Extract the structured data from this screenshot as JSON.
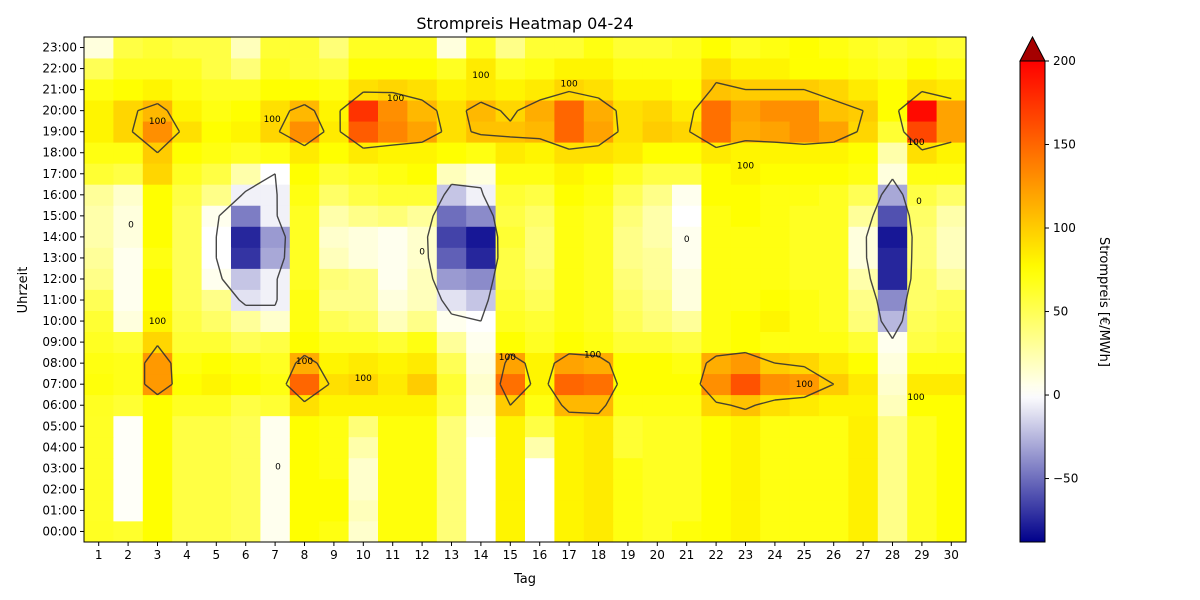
{
  "chart_data": {
    "type": "heatmap",
    "title": "Strompreis Heatmap 04-24",
    "xlabel": "Tag",
    "ylabel": "Uhrzeit",
    "colorbar_label": "Strompreis [€/MWh]",
    "x": [
      "1",
      "2",
      "3",
      "4",
      "5",
      "6",
      "7",
      "8",
      "9",
      "10",
      "11",
      "12",
      "13",
      "14",
      "15",
      "16",
      "17",
      "18",
      "19",
      "20",
      "21",
      "22",
      "23",
      "24",
      "25",
      "26",
      "27",
      "28",
      "29",
      "30"
    ],
    "y": [
      "00:00",
      "01:00",
      "02:00",
      "03:00",
      "04:00",
      "05:00",
      "06:00",
      "07:00",
      "08:00",
      "09:00",
      "10:00",
      "11:00",
      "12:00",
      "13:00",
      "14:00",
      "15:00",
      "16:00",
      "17:00",
      "18:00",
      "19:00",
      "20:00",
      "21:00",
      "22:00",
      "23:00"
    ],
    "values": [
      [
        65,
        62,
        75,
        55,
        55,
        50,
        5,
        75,
        70,
        15,
        72,
        72,
        40,
        0,
        80,
        0,
        80,
        85,
        70,
        65,
        72,
        75,
        80,
        70,
        70,
        70,
        82,
        35,
        65,
        75
      ],
      [
        64,
        2,
        75,
        55,
        55,
        50,
        5,
        75,
        75,
        20,
        72,
        72,
        40,
        0,
        80,
        0,
        80,
        85,
        70,
        65,
        65,
        75,
        80,
        70,
        70,
        70,
        82,
        35,
        65,
        75
      ],
      [
        64,
        2,
        75,
        55,
        55,
        50,
        5,
        75,
        75,
        15,
        72,
        72,
        40,
        0,
        80,
        0,
        80,
        85,
        70,
        65,
        65,
        75,
        80,
        70,
        70,
        70,
        82,
        35,
        65,
        75
      ],
      [
        64,
        2,
        75,
        55,
        55,
        50,
        5,
        75,
        70,
        15,
        72,
        72,
        40,
        0,
        80,
        0,
        80,
        85,
        70,
        65,
        65,
        75,
        80,
        70,
        70,
        70,
        82,
        35,
        65,
        75
      ],
      [
        64,
        2,
        75,
        55,
        55,
        50,
        5,
        75,
        70,
        25,
        72,
        72,
        40,
        0,
        80,
        25,
        80,
        85,
        60,
        65,
        65,
        75,
        80,
        70,
        70,
        70,
        82,
        35,
        65,
        75
      ],
      [
        64,
        2,
        75,
        55,
        55,
        50,
        5,
        75,
        70,
        40,
        72,
        72,
        40,
        5,
        80,
        55,
        80,
        85,
        60,
        65,
        65,
        75,
        80,
        70,
        70,
        70,
        82,
        35,
        65,
        75
      ],
      [
        65,
        60,
        75,
        65,
        65,
        55,
        60,
        90,
        80,
        80,
        80,
        80,
        55,
        10,
        100,
        70,
        110,
        110,
        70,
        70,
        70,
        95,
        105,
        90,
        85,
        80,
        80,
        20,
        75,
        75
      ],
      [
        72,
        68,
        125,
        75,
        80,
        75,
        70,
        150,
        90,
        95,
        85,
        100,
        60,
        15,
        145,
        80,
        150,
        145,
        75,
        75,
        75,
        130,
        160,
        130,
        125,
        100,
        85,
        15,
        85,
        85
      ],
      [
        70,
        68,
        125,
        70,
        75,
        70,
        65,
        115,
        80,
        85,
        80,
        85,
        50,
        10,
        120,
        80,
        120,
        115,
        75,
        75,
        70,
        115,
        125,
        100,
        95,
        85,
        75,
        10,
        70,
        70
      ],
      [
        65,
        60,
        95,
        60,
        60,
        50,
        55,
        75,
        65,
        65,
        60,
        70,
        30,
        5,
        75,
        65,
        75,
        70,
        60,
        60,
        55,
        70,
        75,
        70,
        70,
        70,
        60,
        5,
        55,
        60
      ],
      [
        60,
        10,
        80,
        55,
        45,
        30,
        15,
        70,
        50,
        45,
        20,
        35,
        5,
        0,
        65,
        60,
        70,
        65,
        50,
        40,
        30,
        70,
        75,
        80,
        70,
        65,
        40,
        -25,
        50,
        55
      ],
      [
        50,
        5,
        75,
        50,
        35,
        -10,
        -5,
        70,
        35,
        35,
        10,
        20,
        -10,
        -20,
        60,
        50,
        70,
        65,
        45,
        35,
        10,
        70,
        70,
        75,
        70,
        65,
        35,
        -40,
        45,
        50
      ],
      [
        35,
        5,
        75,
        50,
        5,
        -20,
        -5,
        65,
        40,
        35,
        5,
        20,
        -35,
        -40,
        55,
        45,
        70,
        65,
        40,
        30,
        10,
        70,
        70,
        70,
        65,
        65,
        25,
        -75,
        45,
        30
      ],
      [
        30,
        5,
        70,
        50,
        0,
        -70,
        -30,
        65,
        20,
        10,
        5,
        15,
        -55,
        -75,
        55,
        40,
        70,
        65,
        35,
        30,
        5,
        70,
        70,
        70,
        65,
        65,
        10,
        -75,
        40,
        20
      ],
      [
        25,
        10,
        75,
        50,
        0,
        -75,
        -35,
        65,
        15,
        10,
        5,
        15,
        -65,
        -80,
        60,
        40,
        70,
        65,
        35,
        25,
        5,
        70,
        70,
        70,
        65,
        65,
        10,
        -80,
        40,
        20
      ],
      [
        25,
        10,
        75,
        50,
        5,
        -45,
        -5,
        65,
        25,
        35,
        40,
        30,
        -50,
        -40,
        55,
        45,
        70,
        65,
        40,
        25,
        0,
        70,
        75,
        70,
        65,
        65,
        30,
        -60,
        45,
        25
      ],
      [
        30,
        15,
        75,
        55,
        35,
        -5,
        -5,
        70,
        45,
        55,
        60,
        60,
        -20,
        -5,
        60,
        55,
        75,
        70,
        50,
        35,
        5,
        75,
        75,
        70,
        70,
        65,
        50,
        -30,
        55,
        45
      ],
      [
        60,
        55,
        95,
        65,
        55,
        25,
        0,
        75,
        60,
        65,
        70,
        75,
        20,
        10,
        70,
        70,
        80,
        75,
        65,
        55,
        55,
        75,
        80,
        75,
        75,
        75,
        70,
        10,
        70,
        70
      ],
      [
        70,
        70,
        100,
        75,
        70,
        65,
        70,
        85,
        75,
        85,
        80,
        80,
        75,
        70,
        85,
        80,
        90,
        90,
        85,
        75,
        75,
        85,
        80,
        80,
        80,
        80,
        75,
        25,
        90,
        80
      ],
      [
        80,
        95,
        130,
        90,
        75,
        80,
        95,
        130,
        85,
        155,
        135,
        120,
        90,
        105,
        105,
        110,
        150,
        120,
        90,
        100,
        95,
        145,
        115,
        120,
        130,
        120,
        95,
        60,
        165,
        120
      ],
      [
        80,
        95,
        110,
        80,
        70,
        75,
        90,
        110,
        80,
        175,
        130,
        110,
        90,
        110,
        95,
        115,
        150,
        115,
        90,
        95,
        85,
        145,
        120,
        130,
        130,
        105,
        100,
        75,
        195,
        120
      ],
      [
        70,
        75,
        80,
        70,
        65,
        65,
        75,
        75,
        70,
        90,
        95,
        90,
        80,
        85,
        80,
        85,
        95,
        90,
        80,
        80,
        75,
        105,
        100,
        100,
        100,
        95,
        85,
        75,
        90,
        85
      ],
      [
        50,
        65,
        65,
        65,
        55,
        40,
        65,
        60,
        55,
        75,
        75,
        75,
        65,
        85,
        65,
        70,
        80,
        80,
        70,
        70,
        70,
        90,
        80,
        80,
        75,
        75,
        70,
        65,
        75,
        70
      ],
      [
        10,
        55,
        60,
        55,
        55,
        20,
        60,
        60,
        40,
        65,
        65,
        65,
        10,
        65,
        35,
        60,
        60,
        70,
        60,
        60,
        65,
        75,
        65,
        70,
        75,
        70,
        65,
        60,
        65,
        60
      ]
    ],
    "colorbar": {
      "min": -88,
      "max": 200,
      "ticks": [
        -50,
        0,
        50,
        100,
        150,
        200
      ],
      "extend": "max"
    },
    "colors": {
      "low": "#00008b",
      "mid": "#ffffff",
      "high": "#ffff00",
      "top": "#ff0000",
      "over": "#a50000"
    },
    "contours": {
      "levels": [
        0,
        100
      ],
      "labels": [
        {
          "text": "0",
          "x": 2.1,
          "y": 15.1
        },
        {
          "text": "0",
          "x": 7.1,
          "y": 3.6
        },
        {
          "text": "0",
          "x": 12.0,
          "y": 13.8
        },
        {
          "text": "0",
          "x": 21.0,
          "y": 14.4
        },
        {
          "text": "0",
          "x": 28.9,
          "y": 16.2
        },
        {
          "text": "100",
          "x": 3.0,
          "y": 10.5
        },
        {
          "text": "100",
          "x": 3.0,
          "y": 20.0
        },
        {
          "text": "100",
          "x": 6.9,
          "y": 20.1
        },
        {
          "text": "100",
          "x": 8.0,
          "y": 8.6
        },
        {
          "text": "100",
          "x": 10.0,
          "y": 7.8
        },
        {
          "text": "100",
          "x": 11.1,
          "y": 21.1
        },
        {
          "text": "100",
          "x": 14.0,
          "y": 22.2
        },
        {
          "text": "100",
          "x": 14.9,
          "y": 8.8
        },
        {
          "text": "100",
          "x": 17.0,
          "y": 21.8
        },
        {
          "text": "100",
          "x": 17.8,
          "y": 8.9
        },
        {
          "text": "100",
          "x": 23.0,
          "y": 17.9
        },
        {
          "text": "100",
          "x": 25.0,
          "y": 7.5
        },
        {
          "text": "100",
          "x": 28.8,
          "y": 19.0
        },
        {
          "text": "100",
          "x": 28.8,
          "y": 6.9
        }
      ]
    }
  }
}
